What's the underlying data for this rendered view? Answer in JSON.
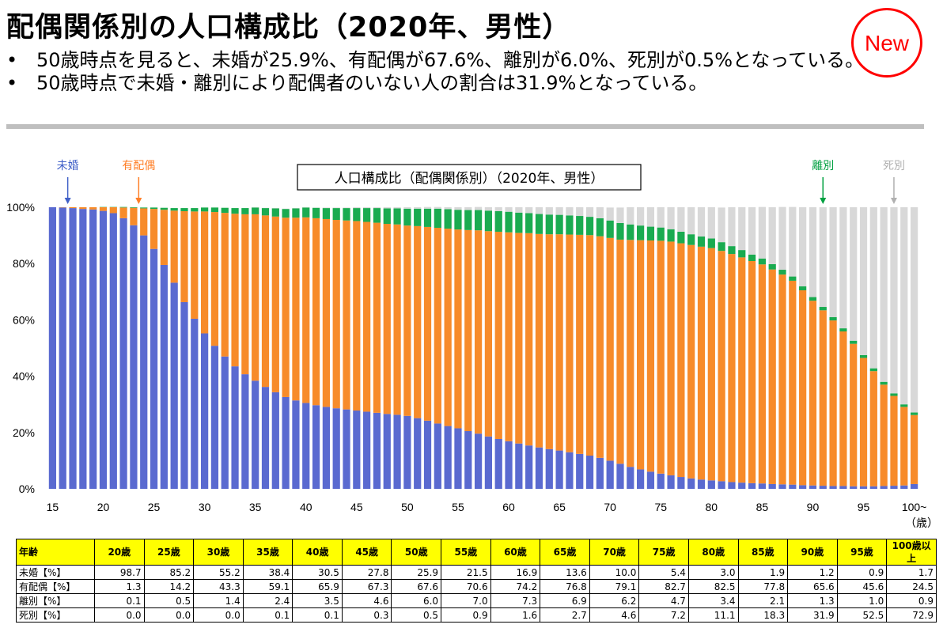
{
  "page": {
    "title": "配偶関係別の人口構成比（2020年、男性）",
    "badge": "New",
    "bullets": [
      "50歳時点を見ると、未婚が25.9%、有配偶が67.6%、離別が6.0%、死別が0.5%となっている。",
      "50歳時点で未婚・離別により配偶者のいない人の割合は31.9%となっている。"
    ]
  },
  "chart_data": {
    "type": "bar",
    "stacked": true,
    "title": "人口構成比（配偶関係別）（2020年、男性）",
    "xunit": "（歳）",
    "x_start": 15,
    "x_ticks": [
      "15",
      "20",
      "25",
      "30",
      "35",
      "40",
      "45",
      "50",
      "55",
      "60",
      "65",
      "70",
      "75",
      "80",
      "85",
      "90",
      "95",
      "100~"
    ],
    "y_ticks": [
      "0%",
      "20%",
      "40%",
      "60%",
      "80%",
      "100%"
    ],
    "ylim": [
      0,
      100
    ],
    "colors": {
      "未婚": "#5a6ad0",
      "有配偶": "#f78b2a",
      "離別": "#1aab50",
      "死別": "#d8d8d8"
    },
    "legend": [
      {
        "name": "未婚",
        "age": 16.5,
        "color": "#4060c8"
      },
      {
        "name": "有配偶",
        "age": 23.5,
        "color": "#ff7f27"
      },
      {
        "name": "離別",
        "age": 91,
        "color": "#00a040"
      },
      {
        "name": "死別",
        "age": 98,
        "color": "#b0b0b0"
      }
    ],
    "series": [
      {
        "name": "未婚",
        "values": [
          100,
          99.9,
          99.7,
          99.4,
          99.2,
          98.7,
          97.9,
          96.1,
          93.6,
          90.0,
          85.2,
          79.5,
          73.2,
          66.3,
          60.4,
          55.2,
          50.8,
          47.0,
          43.5,
          40.7,
          38.4,
          36.2,
          34.3,
          32.6,
          31.4,
          30.5,
          29.7,
          29.1,
          28.6,
          28.2,
          27.8,
          27.4,
          27.0,
          26.6,
          26.3,
          25.9,
          25.1,
          24.2,
          23.2,
          22.3,
          21.5,
          20.5,
          19.6,
          18.6,
          17.7,
          16.9,
          16.1,
          15.4,
          14.7,
          14.1,
          13.6,
          13.0,
          12.4,
          11.8,
          11.0,
          10.0,
          8.9,
          7.8,
          6.9,
          6.1,
          5.4,
          4.8,
          4.2,
          3.7,
          3.3,
          3.0,
          2.7,
          2.4,
          2.2,
          2.0,
          1.9,
          1.7,
          1.6,
          1.5,
          1.3,
          1.2,
          1.1,
          1.0,
          1.0,
          0.9,
          0.9,
          0.9,
          1.0,
          1.1,
          1.2,
          1.7
        ]
      },
      {
        "name": "有配偶",
        "values": [
          0,
          0.1,
          0.3,
          0.6,
          0.8,
          1.3,
          2.1,
          3.8,
          6.2,
          9.6,
          14.2,
          19.6,
          25.6,
          32.3,
          38.1,
          43.3,
          47.5,
          51.0,
          54.2,
          56.8,
          59.1,
          60.9,
          62.4,
          63.7,
          64.9,
          65.9,
          66.4,
          66.7,
          66.9,
          67.1,
          67.3,
          67.4,
          67.5,
          67.5,
          67.6,
          67.6,
          68.2,
          68.8,
          69.5,
          70.1,
          70.6,
          71.4,
          72.2,
          72.9,
          73.6,
          74.2,
          74.8,
          75.4,
          75.8,
          76.3,
          76.8,
          77.3,
          77.8,
          78.3,
          78.7,
          79.1,
          79.6,
          80.6,
          81.4,
          82.1,
          82.7,
          83.0,
          83.0,
          82.9,
          82.7,
          82.5,
          81.8,
          81.0,
          80.0,
          78.9,
          77.8,
          76.2,
          74.5,
          72.4,
          69.2,
          65.6,
          62.3,
          58.8,
          54.9,
          50.6,
          45.6,
          40.9,
          36.0,
          31.9,
          27.9,
          24.5
        ]
      },
      {
        "name": "離別",
        "values": [
          0,
          0,
          0,
          0,
          0,
          0.1,
          0.1,
          0.2,
          0.2,
          0.3,
          0.5,
          0.7,
          0.9,
          1.1,
          1.2,
          1.4,
          1.6,
          1.8,
          2.0,
          2.2,
          2.4,
          2.6,
          2.9,
          3.1,
          3.3,
          3.5,
          3.7,
          3.9,
          4.2,
          4.4,
          4.6,
          4.9,
          5.2,
          5.5,
          5.7,
          6.0,
          6.2,
          6.5,
          6.8,
          6.9,
          7.0,
          7.1,
          7.2,
          7.3,
          7.3,
          7.3,
          7.2,
          7.1,
          7.1,
          7.0,
          6.9,
          6.8,
          6.7,
          6.5,
          6.4,
          6.2,
          5.9,
          5.5,
          5.2,
          4.9,
          4.7,
          4.4,
          4.1,
          3.8,
          3.6,
          3.4,
          3.1,
          2.8,
          2.6,
          2.3,
          2.1,
          1.9,
          1.7,
          1.5,
          1.4,
          1.3,
          1.2,
          1.2,
          1.1,
          1.1,
          1.0,
          1.0,
          1.0,
          0.9,
          0.9,
          0.9
        ]
      },
      {
        "name": "死別",
        "values": [
          0,
          0,
          0,
          0,
          0,
          0,
          0,
          0,
          0,
          0,
          0,
          0,
          0,
          0,
          0,
          0,
          0,
          0,
          0,
          0,
          0.1,
          0.1,
          0.1,
          0.1,
          0.1,
          0.1,
          0.1,
          0.2,
          0.2,
          0.2,
          0.3,
          0.3,
          0.3,
          0.4,
          0.4,
          0.5,
          0.5,
          0.6,
          0.6,
          0.7,
          0.9,
          1.0,
          1.1,
          1.2,
          1.4,
          1.6,
          1.9,
          2.1,
          2.4,
          2.6,
          2.7,
          2.9,
          3.1,
          3.4,
          3.9,
          4.6,
          5.5,
          6.1,
          6.5,
          6.9,
          7.2,
          7.8,
          8.7,
          9.6,
          10.4,
          11.1,
          12.3,
          13.8,
          15.2,
          16.8,
          18.3,
          20.2,
          22.3,
          24.7,
          28.1,
          31.9,
          35.4,
          39.0,
          43.0,
          47.4,
          52.5,
          57.2,
          62.0,
          66.1,
          70.0,
          72.9
        ]
      }
    ]
  },
  "table": {
    "header_label": "年齢",
    "columns": [
      "20歳",
      "25歳",
      "30歳",
      "35歳",
      "40歳",
      "45歳",
      "50歳",
      "55歳",
      "60歳",
      "65歳",
      "70歳",
      "75歳",
      "80歳",
      "85歳",
      "90歳",
      "95歳",
      "100歳以上"
    ],
    "rows": [
      {
        "label": "未婚【%】",
        "values": [
          "98.7",
          "85.2",
          "55.2",
          "38.4",
          "30.5",
          "27.8",
          "25.9",
          "21.5",
          "16.9",
          "13.6",
          "10.0",
          "5.4",
          "3.0",
          "1.9",
          "1.2",
          "0.9",
          "1.7"
        ]
      },
      {
        "label": "有配偶【%】",
        "values": [
          "1.3",
          "14.2",
          "43.3",
          "59.1",
          "65.9",
          "67.3",
          "67.6",
          "70.6",
          "74.2",
          "76.8",
          "79.1",
          "82.7",
          "82.5",
          "77.8",
          "65.6",
          "45.6",
          "24.5"
        ]
      },
      {
        "label": "離別【%】",
        "values": [
          "0.1",
          "0.5",
          "1.4",
          "2.4",
          "3.5",
          "4.6",
          "6.0",
          "7.0",
          "7.3",
          "6.9",
          "6.2",
          "4.7",
          "3.4",
          "2.1",
          "1.3",
          "1.0",
          "0.9"
        ]
      },
      {
        "label": "死別【%】",
        "values": [
          "0.0",
          "0.0",
          "0.0",
          "0.1",
          "0.1",
          "0.3",
          "0.5",
          "0.9",
          "1.6",
          "2.7",
          "4.6",
          "7.2",
          "11.1",
          "18.3",
          "31.9",
          "52.5",
          "72.9"
        ]
      }
    ]
  }
}
